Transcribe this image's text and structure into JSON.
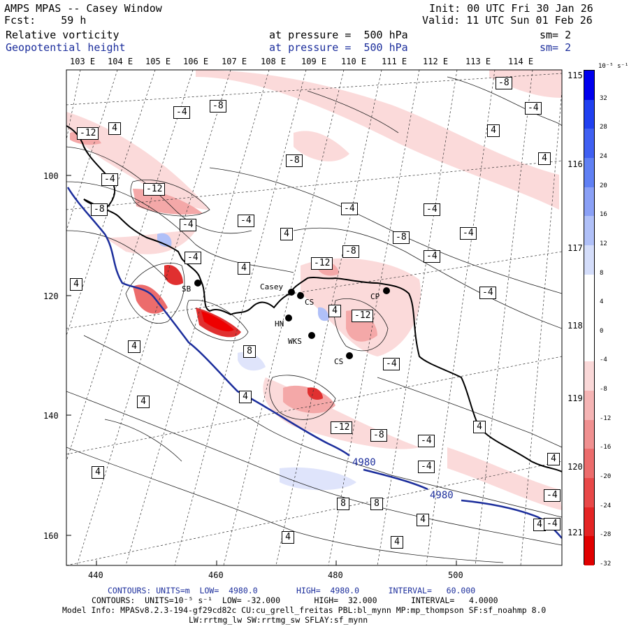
{
  "header": {
    "app_title": "AMPS MPAS -- Casey Window",
    "forecast": "Fcst:    59 h",
    "init": "Init: 00 UTC Fri 30 Jan 26",
    "valid": "Valid: 11 UTC Sun 01 Feb 26",
    "field1_name": "Relative vorticity",
    "field1_level": "at pressure =  500 hPa",
    "field1_sm": "sm= 2",
    "field2_name": "Geopotential height",
    "field2_level": "at pressure =  500 hPa",
    "field2_sm": "sm= 2"
  },
  "axes": {
    "top_lon_labels": [
      "103 E",
      "104 E",
      "105 E",
      "106 E",
      "107 E",
      "108 E",
      "109 E",
      "110 E",
      "111 E",
      "112 E",
      "113 E",
      "114 E"
    ],
    "right_lon_labels": [
      "115 E",
      "116 E",
      "117 E",
      "118 E",
      "119 E",
      "120 E",
      "121 E"
    ],
    "left_y_labels": [
      "100",
      "120",
      "140",
      "160"
    ],
    "bottom_x_labels": [
      "440",
      "460",
      "480",
      "500"
    ]
  },
  "colorbar": {
    "unit_label": "10⁻⁵ s⁻¹",
    "tick_labels": [
      "32",
      "28",
      "24",
      "20",
      "16",
      "12",
      "8",
      "4",
      "0",
      "-4",
      "-8",
      "-12",
      "-16",
      "-20",
      "-24",
      "-28",
      "-32"
    ],
    "colors": [
      "#0000ee",
      "#2040f0",
      "#4060f2",
      "#6080f4",
      "#8aa0f6",
      "#b0c0f8",
      "#d4ddfa",
      "#ffffff",
      "#ffffff",
      "#ffffff",
      "#fad8d8",
      "#f5b4b4",
      "#f09090",
      "#ec6c6c",
      "#e84848",
      "#e42424",
      "#e00000"
    ]
  },
  "contour_labels": [
    {
      "text": "-4"
    },
    {
      "text": "-8"
    },
    {
      "text": "-12"
    },
    {
      "text": "4"
    },
    {
      "text": "-12"
    },
    {
      "text": "-4"
    },
    {
      "text": "-8"
    },
    {
      "text": "-4"
    },
    {
      "text": "-8"
    },
    {
      "text": "-4"
    },
    {
      "text": "4"
    },
    {
      "text": "-8"
    },
    {
      "text": "-4"
    },
    {
      "text": "-4"
    },
    {
      "text": "4"
    },
    {
      "text": "-4"
    },
    {
      "text": "-4"
    },
    {
      "text": "-8"
    },
    {
      "text": "-8"
    },
    {
      "text": "-4"
    },
    {
      "text": "-12"
    },
    {
      "text": "4"
    },
    {
      "text": "4"
    },
    {
      "text": "-4"
    },
    {
      "text": "-4"
    },
    {
      "text": "4"
    },
    {
      "text": "-12"
    },
    {
      "text": "4"
    },
    {
      "text": "8"
    },
    {
      "text": "-4"
    },
    {
      "text": "4"
    },
    {
      "text": "4"
    },
    {
      "text": "-8"
    },
    {
      "text": "-12"
    },
    {
      "text": "-4"
    },
    {
      "text": "-4"
    },
    {
      "text": "4"
    },
    {
      "text": "4"
    },
    {
      "text": "8"
    },
    {
      "text": "8"
    },
    {
      "text": "4"
    },
    {
      "text": "4"
    },
    {
      "text": "4"
    },
    {
      "text": "4"
    },
    {
      "text": "4"
    },
    {
      "text": "-4"
    },
    {
      "text": "-4"
    },
    {
      "text": "4"
    }
  ],
  "height_labels": [
    "4980",
    "4980"
  ],
  "stations": [
    {
      "name": "Casey"
    },
    {
      "name": "CS"
    },
    {
      "name": "CP"
    },
    {
      "name": "HN"
    },
    {
      "name": "WKS"
    },
    {
      "name": "CS"
    },
    {
      "name": "SB"
    }
  ],
  "footer": {
    "contours1": "CONTOURS: UNITS=m  LOW=  4980.0        HIGH=  4980.0      INTERVAL=   60.000",
    "contours2": "CONTOURS:  UNITS=10⁻⁵ s⁻¹  LOW= -32.000       HIGH=  32.000       INTERVAL=   4.0000",
    "model_info": "Model Info: MPASv8.2.3-194-gf29cd82c CU:cu_grell_freitas PBL:bl_mynn MP:mp_thompson SF:sf_noahmp 8.0",
    "model_info2": "LW:rrtmg_lw SW:rrtmg_sw SFLAY:sf_mynn"
  }
}
